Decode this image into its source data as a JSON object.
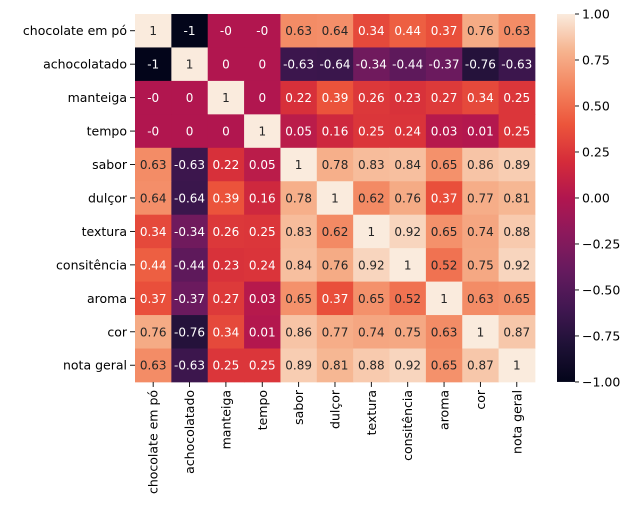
{
  "chart_data": {
    "type": "heatmap",
    "title": "",
    "xlabel": "",
    "ylabel": "",
    "colormap": "rocket",
    "vmin": -1,
    "vmax": 1,
    "x_categories": [
      "chocolate em pó",
      "achocolatado",
      "manteiga",
      "tempo",
      "sabor",
      "dulçor",
      "textura",
      "consitência",
      "aroma",
      "cor",
      "nota geral"
    ],
    "y_categories": [
      "chocolate em pó",
      "achocolatado",
      "manteiga",
      "tempo",
      "sabor",
      "dulçor",
      "textura",
      "consitência",
      "aroma",
      "cor",
      "nota geral"
    ],
    "values": [
      [
        1,
        -1,
        0,
        0,
        0.63,
        0.64,
        0.34,
        0.44,
        0.37,
        0.76,
        0.63
      ],
      [
        -1,
        1,
        0,
        0,
        -0.63,
        -0.64,
        -0.34,
        -0.44,
        -0.37,
        -0.76,
        -0.63
      ],
      [
        0,
        0,
        1,
        0,
        0.22,
        0.39,
        0.26,
        0.23,
        0.27,
        0.34,
        0.25
      ],
      [
        0,
        0,
        0,
        1,
        0.05,
        0.16,
        0.25,
        0.24,
        0.03,
        0.01,
        0.25
      ],
      [
        0.63,
        -0.63,
        0.22,
        0.05,
        1,
        0.78,
        0.83,
        0.84,
        0.65,
        0.86,
        0.89
      ],
      [
        0.64,
        -0.64,
        0.39,
        0.16,
        0.78,
        1,
        0.62,
        0.76,
        0.37,
        0.77,
        0.81
      ],
      [
        0.34,
        -0.34,
        0.26,
        0.25,
        0.83,
        0.62,
        1,
        0.92,
        0.65,
        0.74,
        0.88
      ],
      [
        0.44,
        -0.44,
        0.23,
        0.24,
        0.84,
        0.76,
        0.92,
        1,
        0.52,
        0.75,
        0.92
      ],
      [
        0.37,
        -0.37,
        0.27,
        0.03,
        0.65,
        0.37,
        0.65,
        0.52,
        1,
        0.63,
        0.65
      ],
      [
        0.76,
        -0.76,
        0.34,
        0.01,
        0.86,
        0.77,
        0.74,
        0.75,
        0.63,
        1,
        0.87
      ],
      [
        0.63,
        -0.63,
        0.25,
        0.25,
        0.89,
        0.81,
        0.88,
        0.92,
        0.65,
        0.87,
        1
      ]
    ],
    "cell_labels": [
      [
        "1",
        "-1",
        "-0",
        "-0",
        "0.63",
        "0.64",
        "0.34",
        "0.44",
        "0.37",
        "0.76",
        "0.63"
      ],
      [
        "-1",
        "1",
        "0",
        "0",
        "-0.63",
        "-0.64",
        "-0.34",
        "-0.44",
        "-0.37",
        "-0.76",
        "-0.63"
      ],
      [
        "-0",
        "0",
        "1",
        "0",
        "0.22",
        "0.39",
        "0.26",
        "0.23",
        "0.27",
        "0.34",
        "0.25"
      ],
      [
        "-0",
        "0",
        "0",
        "1",
        "0.05",
        "0.16",
        "0.25",
        "0.24",
        "0.03",
        "0.01",
        "0.25"
      ],
      [
        "0.63",
        "-0.63",
        "0.22",
        "0.05",
        "1",
        "0.78",
        "0.83",
        "0.84",
        "0.65",
        "0.86",
        "0.89"
      ],
      [
        "0.64",
        "-0.64",
        "0.39",
        "0.16",
        "0.78",
        "1",
        "0.62",
        "0.76",
        "0.37",
        "0.77",
        "0.81"
      ],
      [
        "0.34",
        "-0.34",
        "0.26",
        "0.25",
        "0.83",
        "0.62",
        "1",
        "0.92",
        "0.65",
        "0.74",
        "0.88"
      ],
      [
        "0.44",
        "-0.44",
        "0.23",
        "0.24",
        "0.84",
        "0.76",
        "0.92",
        "1",
        "0.52",
        "0.75",
        "0.92"
      ],
      [
        "0.37",
        "-0.37",
        "0.27",
        "0.03",
        "0.65",
        "0.37",
        "0.65",
        "0.52",
        "1",
        "0.63",
        "0.65"
      ],
      [
        "0.76",
        "-0.76",
        "0.34",
        "0.01",
        "0.86",
        "0.77",
        "0.74",
        "0.75",
        "0.63",
        "1",
        "0.87"
      ],
      [
        "0.63",
        "-0.63",
        "0.25",
        "0.25",
        "0.89",
        "0.81",
        "0.88",
        "0.92",
        "0.65",
        "0.87",
        "1"
      ]
    ],
    "colorbar": {
      "ticks": [
        1,
        0.75,
        0.5,
        0.25,
        0,
        -0.25,
        -0.5,
        -0.75,
        -1
      ],
      "tick_labels": [
        "1.00",
        "0.75",
        "0.50",
        "0.25",
        "0.00",
        "−0.25",
        "−0.50",
        "−0.75",
        "−1.00"
      ]
    },
    "legend": "colorbar-right",
    "grid": false
  }
}
